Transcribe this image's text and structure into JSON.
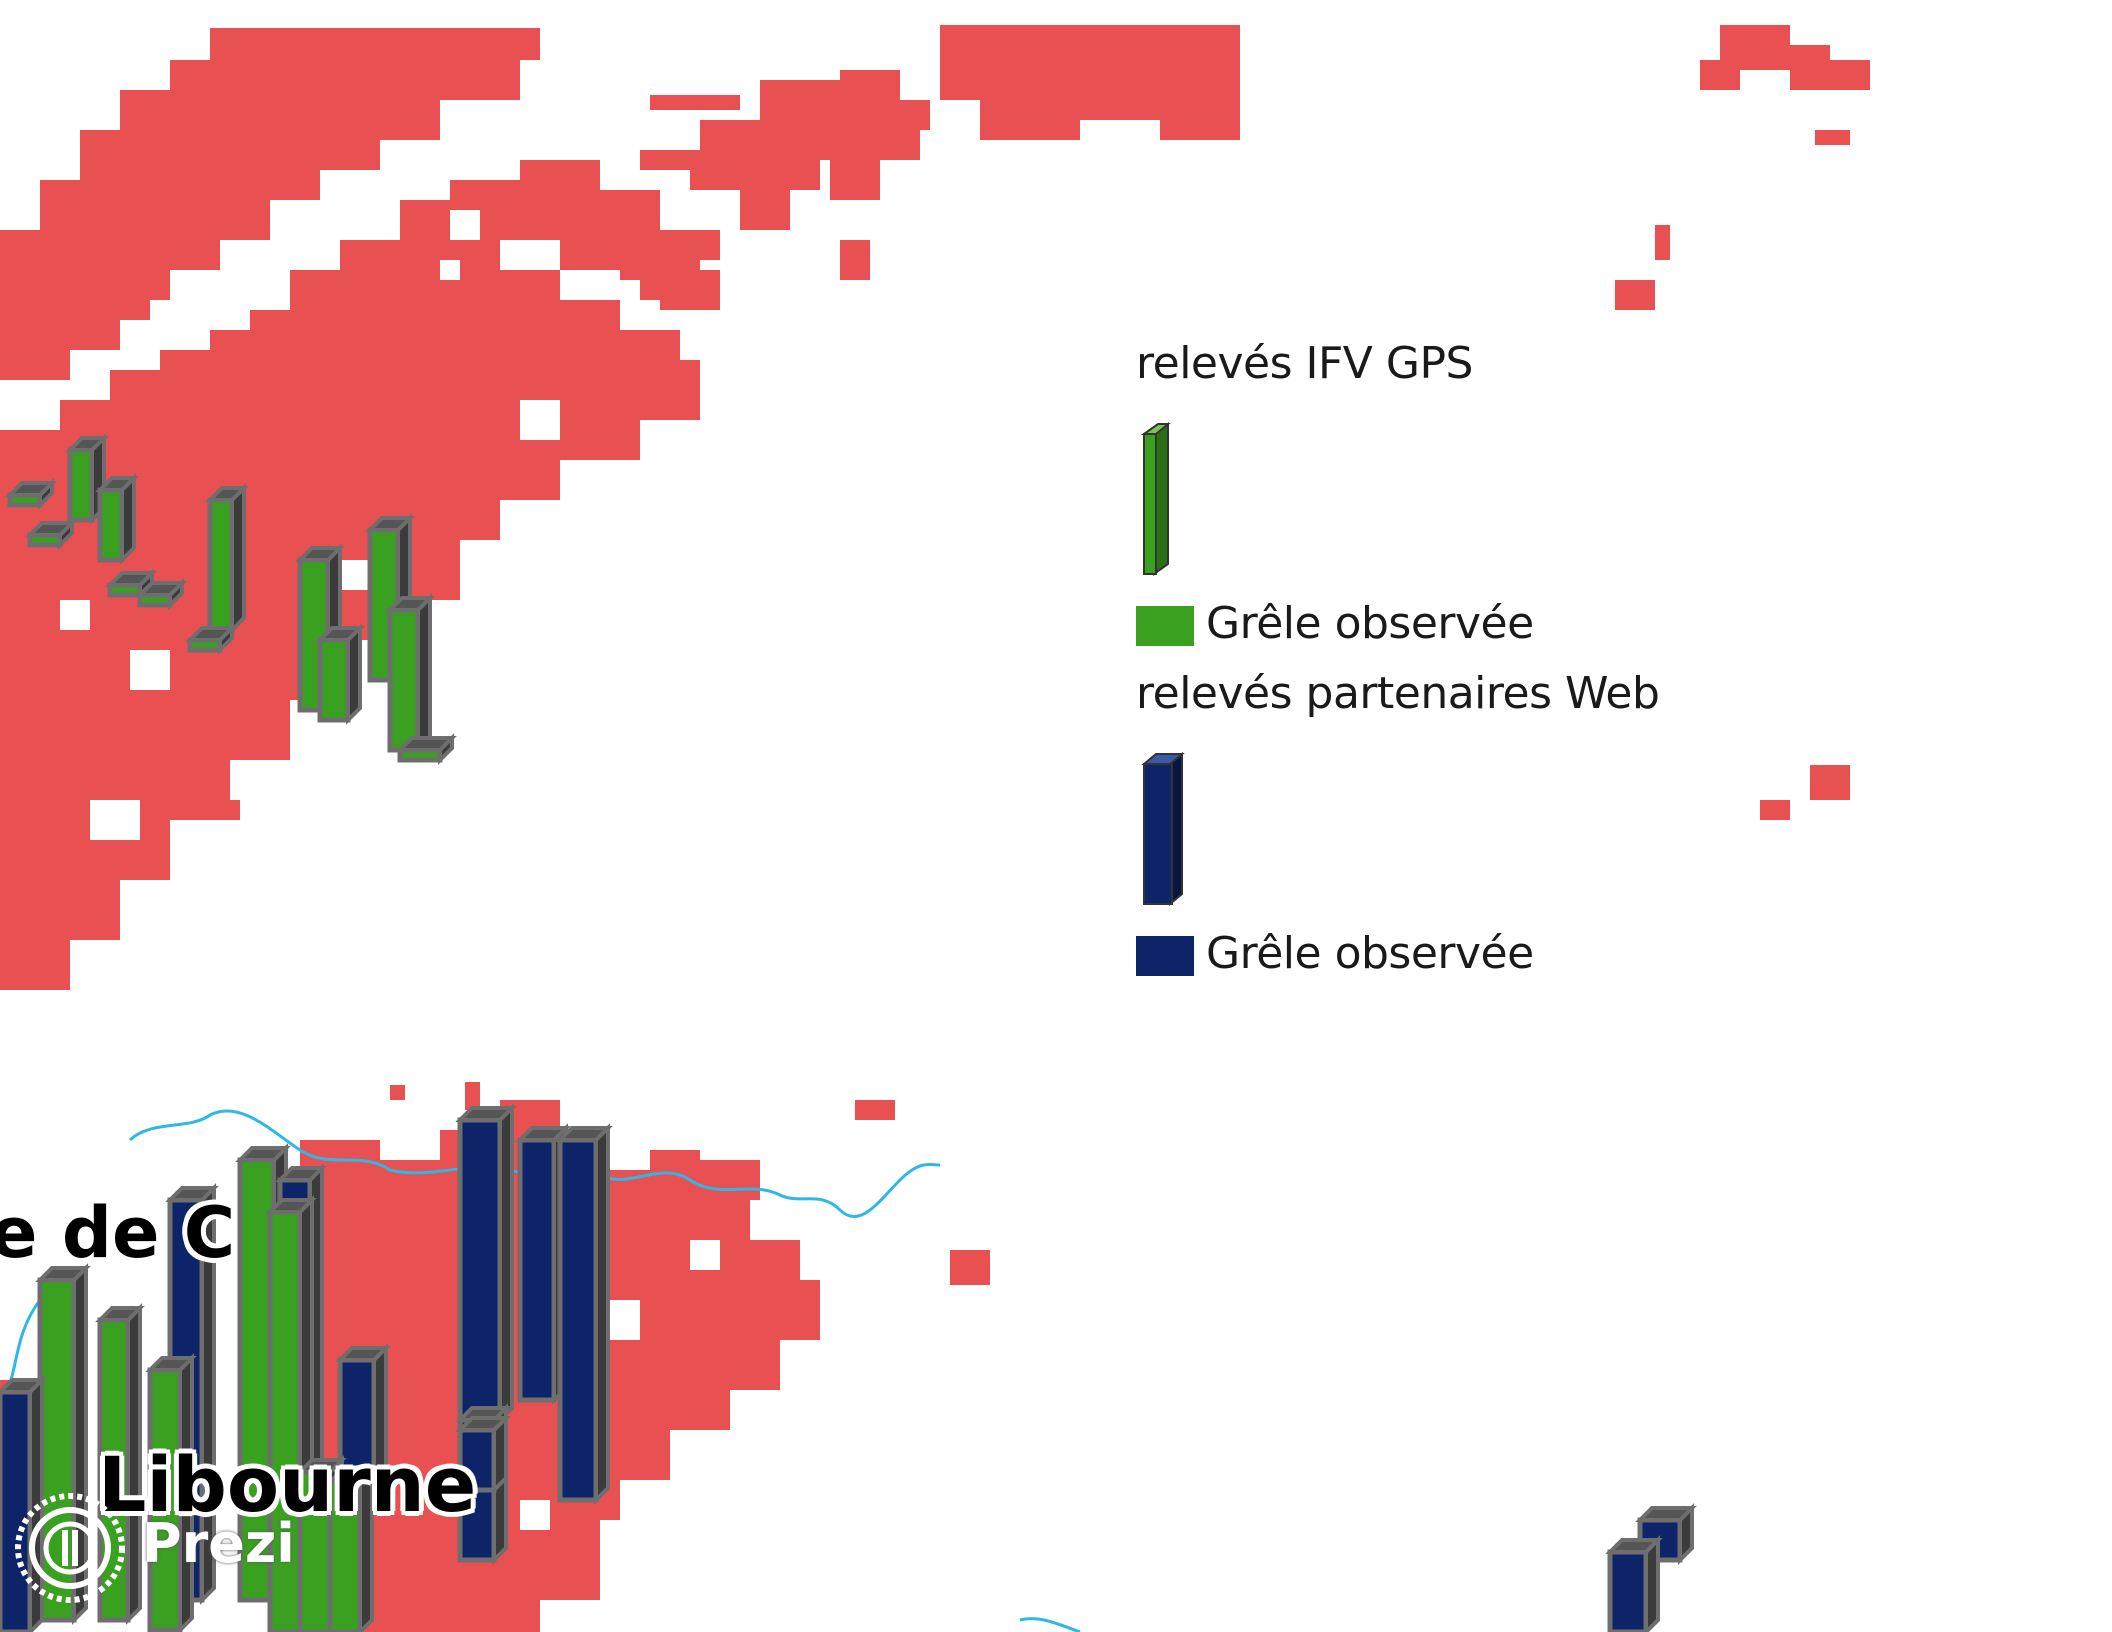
{
  "colors": {
    "hail_zone": "#e85052",
    "ifv_gps_bar": "#3aa120",
    "web_partner_bar": "#0e2468",
    "bar_outline": "#6e6e6e",
    "river": "#2fb8e6",
    "background": "#ffffff"
  },
  "legend": {
    "groups": [
      {
        "heading": "relevés IFV GPS",
        "item_label": "Grêle observée",
        "color": "#3aa120",
        "icon": "green-bar-symbol-icon"
      },
      {
        "heading": "relevés partenaires Web",
        "item_label": "Grêle observée",
        "color": "#0e2468",
        "icon": "blue-bar-symbol-icon"
      }
    ]
  },
  "places": {
    "libourne": "Libourne",
    "partial_label": "e de C"
  },
  "watermark": {
    "text": "Prezi",
    "icon": "prezi-logo-icon"
  }
}
